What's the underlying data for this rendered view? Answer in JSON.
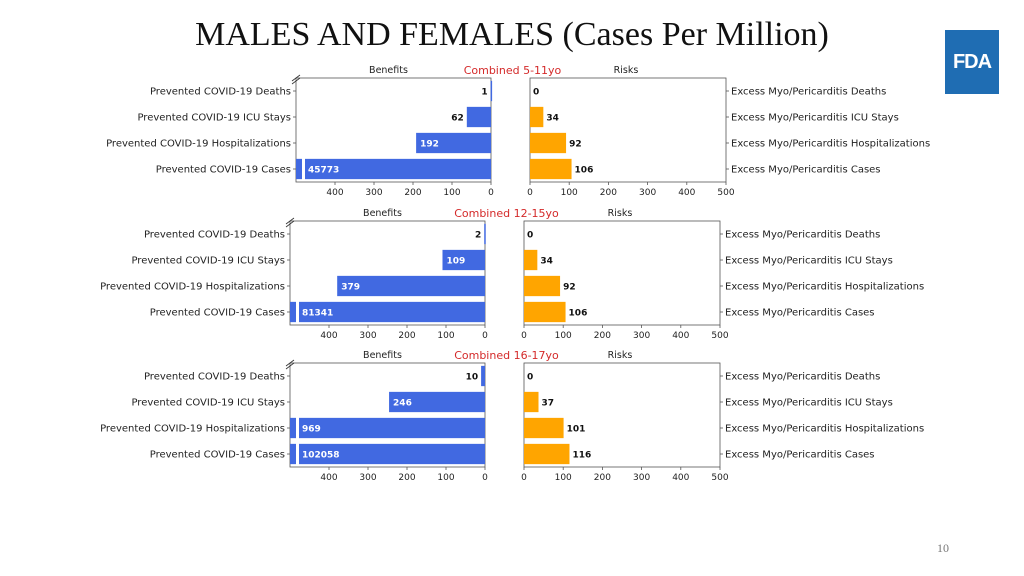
{
  "slide": {
    "title": "MALES AND FEMALES (Cases Per Million)",
    "logo_text": "FDA",
    "page_number": "10"
  },
  "colors": {
    "benefit": "#4169e1",
    "risk": "#ffa500",
    "title_red": "#d42a2a",
    "axis": "#555555"
  },
  "chart_data": [
    {
      "type": "bar",
      "title": "Combined 5-11yo",
      "benefits_label": "Benefits",
      "risks_label": "Risks",
      "benefit_categories": [
        "Prevented COVID-19 Deaths",
        "Prevented COVID-19 ICU Stays",
        "Prevented COVID-19 Hospitalizations",
        "Prevented COVID-19 Cases"
      ],
      "risk_categories": [
        "Excess Myo/Pericarditis Deaths",
        "Excess Myo/Pericarditis ICU Stays",
        "Excess Myo/Pericarditis Hospitalizations",
        "Excess Myo/Pericarditis Cases"
      ],
      "benefits": [
        1,
        62,
        192,
        45773
      ],
      "benefit_labels": [
        "1",
        "62",
        "192",
        "45773"
      ],
      "risks": [
        0,
        34,
        92,
        106
      ],
      "risk_labels": [
        "0",
        "34",
        "92",
        "106"
      ],
      "xlim": [
        0,
        500
      ],
      "ticks": [
        400,
        300,
        200,
        100,
        0
      ],
      "risk_ticks": [
        0,
        100,
        200,
        300,
        400,
        500
      ]
    },
    {
      "type": "bar",
      "title": "Combined 12-15yo",
      "benefits_label": "Benefits",
      "risks_label": "Risks",
      "benefit_categories": [
        "Prevented COVID-19 Deaths",
        "Prevented COVID-19 ICU Stays",
        "Prevented COVID-19 Hospitalizations",
        "Prevented COVID-19 Cases"
      ],
      "risk_categories": [
        "Excess Myo/Pericarditis Deaths",
        "Excess Myo/Pericarditis ICU Stays",
        "Excess Myo/Pericarditis Hospitalizations",
        "Excess Myo/Pericarditis Cases"
      ],
      "benefits": [
        2,
        109,
        379,
        81341
      ],
      "benefit_labels": [
        "2",
        "109",
        "379",
        "81341"
      ],
      "risks": [
        0,
        34,
        92,
        106
      ],
      "risk_labels": [
        "0",
        "34",
        "92",
        "106"
      ],
      "xlim": [
        0,
        500
      ],
      "ticks": [
        400,
        300,
        200,
        100,
        0
      ],
      "risk_ticks": [
        0,
        100,
        200,
        300,
        400,
        500
      ]
    },
    {
      "type": "bar",
      "title": "Combined 16-17yo",
      "benefits_label": "Benefits",
      "risks_label": "Risks",
      "benefit_categories": [
        "Prevented COVID-19 Deaths",
        "Prevented COVID-19 ICU Stays",
        "Prevented COVID-19 Hospitalizations",
        "Prevented COVID-19 Cases"
      ],
      "risk_categories": [
        "Excess Myo/Pericarditis Deaths",
        "Excess Myo/Pericarditis ICU Stays",
        "Excess Myo/Pericarditis Hospitalizations",
        "Excess Myo/Pericarditis Cases"
      ],
      "benefits": [
        10,
        246,
        969,
        102058
      ],
      "benefit_labels": [
        "10",
        "246",
        "969",
        "102058"
      ],
      "risks": [
        0,
        37,
        101,
        116
      ],
      "risk_labels": [
        "0",
        "37",
        "101",
        "116"
      ],
      "xlim": [
        0,
        500
      ],
      "ticks": [
        400,
        300,
        200,
        100,
        0
      ],
      "risk_ticks": [
        0,
        100,
        200,
        300,
        400,
        500
      ]
    }
  ]
}
